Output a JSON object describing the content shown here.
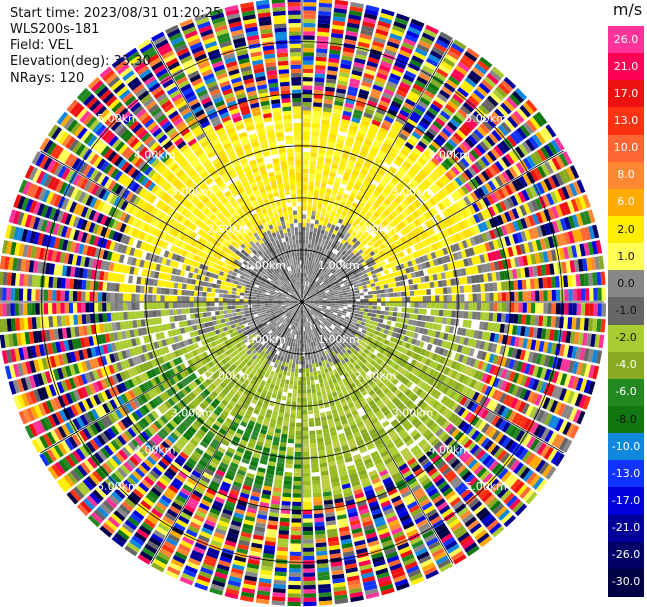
{
  "header": {
    "start_time": "Start time: 2023/08/31 01:20:25",
    "instrument": "WLS200s-181",
    "field": "Field: VEL",
    "elevation": "Elevation(deg): 35.30",
    "nrays": "NRays: 120"
  },
  "chart_data": {
    "type": "polar-ppi",
    "field": "VEL",
    "units": "m/s",
    "nrays": 120,
    "elevation_deg": 35.3,
    "range_rings_km": [
      1.0,
      2.0,
      3.0,
      4.0,
      5.0
    ],
    "ring_labels": [
      "1.00km",
      "2.00km",
      "3.00km",
      "4.00km",
      "5.00km"
    ],
    "spoke_angles_deg": [
      0,
      30,
      60,
      90,
      120,
      150,
      180,
      210,
      240,
      270,
      300,
      330
    ],
    "colorbar": {
      "ticks": [
        "26.0",
        "21.0",
        "17.0",
        "13.0",
        "10.0",
        "8.0",
        "6.0",
        "2.0",
        "1.0",
        "0.0",
        "-1.0",
        "-2.0",
        "-4.0",
        "-6.0",
        "-8.0",
        "-10.0",
        "-13.0",
        "-17.0",
        "-21.0",
        "-26.0",
        "-30.0"
      ],
      "colors": [
        "#ff3399",
        "#ff0055",
        "#ee1111",
        "#ff3311",
        "#ff6633",
        "#ff8833",
        "#ffaa00",
        "#ffee00",
        "#ffff55",
        "#888888",
        "#666666",
        "#aacc33",
        "#88aa22",
        "#228822",
        "#117711",
        "#1188dd",
        "#1133ff",
        "#0000dd",
        "#000099",
        "#000066",
        "#000044"
      ]
    },
    "regions": [
      {
        "description": "near-zero velocity (grey)",
        "km_from": 0.0,
        "km_to": 1.9,
        "value_ms": 0.0
      },
      {
        "description": "positive velocity, north sector (yellow)",
        "km_from": 1.1,
        "km_to": 3.6,
        "value_ms": 2.0
      },
      {
        "description": "negative velocity, south sector (green)",
        "km_from": 0.8,
        "km_to": 3.6,
        "value_ms": -4.0
      },
      {
        "description": "noise / no valid return (multicolour)",
        "km_from": 3.6,
        "km_to": 5.8,
        "value_ms": null
      }
    ]
  }
}
